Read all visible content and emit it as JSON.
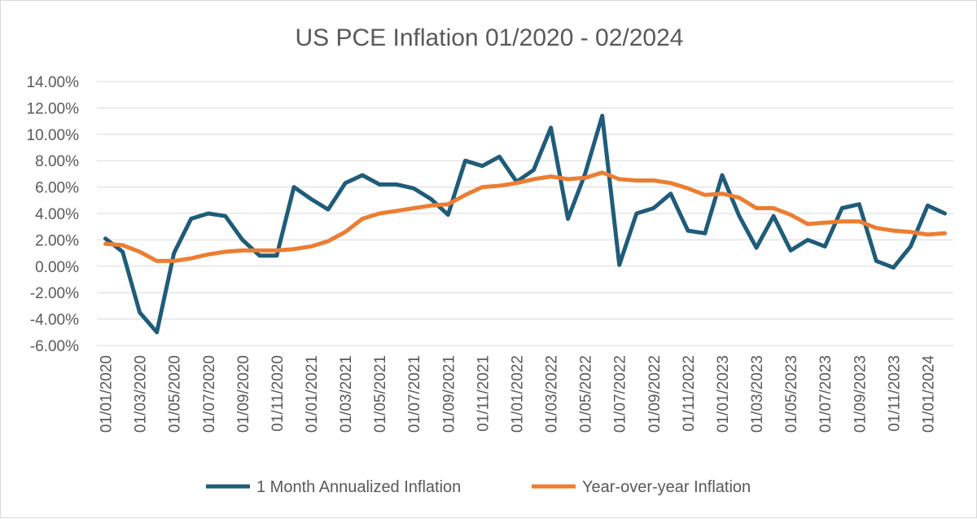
{
  "chart_data": {
    "type": "line",
    "title": "US PCE Inflation 01/2020 - 02/2024",
    "xlabel": "",
    "ylabel": "",
    "ylim": [
      -6,
      14
    ],
    "y_step": 2,
    "y_tick_labels": [
      "-6.00%",
      "-4.00%",
      "-2.00%",
      "0.00%",
      "2.00%",
      "4.00%",
      "6.00%",
      "8.00%",
      "10.00%",
      "12.00%",
      "14.00%"
    ],
    "x_tick_labels": [
      "01/01/2020",
      "01/03/2020",
      "01/05/2020",
      "01/07/2020",
      "01/09/2020",
      "01/11/2020",
      "01/01/2021",
      "01/03/2021",
      "01/05/2021",
      "01/07/2021",
      "01/09/2021",
      "01/11/2021",
      "01/01/2022",
      "01/03/2022",
      "01/05/2022",
      "01/07/2022",
      "01/09/2022",
      "01/11/2022",
      "01/01/2023",
      "01/03/2023",
      "01/05/2023",
      "01/07/2023",
      "01/09/2023",
      "01/11/2023",
      "01/01/2024"
    ],
    "x": [
      "01/01/2020",
      "01/02/2020",
      "01/03/2020",
      "01/04/2020",
      "01/05/2020",
      "01/06/2020",
      "01/07/2020",
      "01/08/2020",
      "01/09/2020",
      "01/10/2020",
      "01/11/2020",
      "01/12/2020",
      "01/01/2021",
      "01/02/2021",
      "01/03/2021",
      "01/04/2021",
      "01/05/2021",
      "01/06/2021",
      "01/07/2021",
      "01/08/2021",
      "01/09/2021",
      "01/10/2021",
      "01/11/2021",
      "01/12/2021",
      "01/01/2022",
      "01/02/2022",
      "01/03/2022",
      "01/04/2022",
      "01/05/2022",
      "01/06/2022",
      "01/07/2022",
      "01/08/2022",
      "01/09/2022",
      "01/10/2022",
      "01/11/2022",
      "01/12/2022",
      "01/01/2023",
      "01/02/2023",
      "01/03/2023",
      "01/04/2023",
      "01/05/2023",
      "01/06/2023",
      "01/07/2023",
      "01/08/2023",
      "01/09/2023",
      "01/10/2023",
      "01/11/2023",
      "01/12/2023",
      "01/01/2024",
      "01/02/2024"
    ],
    "series": [
      {
        "name": "1 Month Annualized Inflation",
        "color": "#1f5c7a",
        "values": [
          2.1,
          1.1,
          -3.5,
          -5.0,
          1.0,
          3.6,
          4.0,
          3.8,
          2.0,
          0.8,
          0.8,
          6.0,
          5.1,
          4.3,
          6.3,
          6.9,
          6.2,
          6.2,
          5.9,
          5.1,
          3.9,
          8.0,
          7.6,
          8.3,
          6.4,
          7.3,
          10.5,
          3.6,
          7.0,
          11.4,
          0.1,
          4.0,
          4.4,
          5.5,
          2.7,
          2.5,
          6.9,
          3.8,
          1.4,
          3.8,
          1.2,
          2.0,
          1.5,
          4.4,
          4.7,
          0.4,
          -0.1,
          1.5,
          4.6,
          4.0
        ]
      },
      {
        "name": "Year-over-year Inflation",
        "color": "#ed7d31",
        "values": [
          1.7,
          1.6,
          1.1,
          0.4,
          0.4,
          0.6,
          0.9,
          1.1,
          1.2,
          1.2,
          1.2,
          1.3,
          1.5,
          1.9,
          2.6,
          3.6,
          4.0,
          4.2,
          4.4,
          4.6,
          4.7,
          5.4,
          6.0,
          6.1,
          6.3,
          6.6,
          6.8,
          6.6,
          6.7,
          7.1,
          6.6,
          6.5,
          6.5,
          6.3,
          5.9,
          5.4,
          5.5,
          5.2,
          4.4,
          4.4,
          3.9,
          3.2,
          3.3,
          3.4,
          3.4,
          2.9,
          2.7,
          2.6,
          2.4,
          2.5
        ]
      }
    ],
    "grid": true,
    "legend_position": "bottom"
  }
}
